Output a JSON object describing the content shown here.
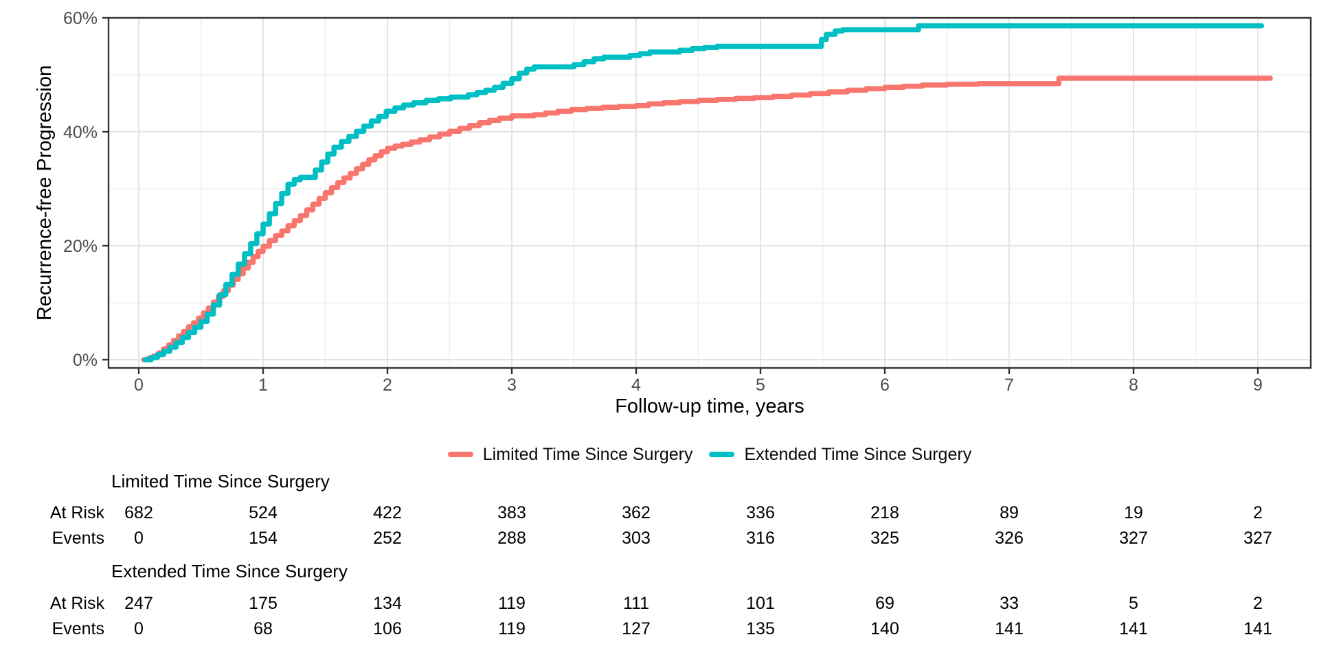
{
  "chart_data": {
    "type": "line",
    "subtype": "kaplan-meier-cumulative-incidence-step",
    "title": "",
    "xlabel": "Follow-up time, years",
    "ylabel": "Recurrence-free Progression",
    "x_ticks": [
      0,
      1,
      2,
      3,
      4,
      5,
      6,
      7,
      8,
      9
    ],
    "y_ticks": [
      {
        "value": 0,
        "label": "0%"
      },
      {
        "value": 20,
        "label": "20%"
      },
      {
        "value": 40,
        "label": "40%"
      },
      {
        "value": 60,
        "label": "60%"
      }
    ],
    "y_minor_gridlines": [
      10,
      30,
      50
    ],
    "x_minor_gridlines": [
      0.5,
      1.5,
      2.5,
      3.5,
      4.5,
      5.5,
      6.5,
      7.5,
      8.5
    ],
    "xlim": [
      -0.25,
      9.42
    ],
    "ylim": [
      -1.5,
      60
    ],
    "grid": "major-and-minor",
    "legend_position": "bottom",
    "series": [
      {
        "name": "Limited Time Since Surgery",
        "color": "#F8766D",
        "step": true,
        "points": [
          [
            0.04,
            0
          ],
          [
            0.08,
            0.3
          ],
          [
            0.12,
            0.7
          ],
          [
            0.16,
            1.2
          ],
          [
            0.2,
            1.9
          ],
          [
            0.24,
            2.6
          ],
          [
            0.28,
            3.4
          ],
          [
            0.32,
            4.2
          ],
          [
            0.36,
            5.0
          ],
          [
            0.4,
            5.8
          ],
          [
            0.44,
            6.5
          ],
          [
            0.48,
            7.3
          ],
          [
            0.52,
            8.2
          ],
          [
            0.56,
            9.1
          ],
          [
            0.6,
            10.1
          ],
          [
            0.64,
            11.1
          ],
          [
            0.68,
            12.1
          ],
          [
            0.72,
            13.1
          ],
          [
            0.76,
            14.1
          ],
          [
            0.8,
            15.1
          ],
          [
            0.84,
            16.1
          ],
          [
            0.88,
            17.1
          ],
          [
            0.92,
            18.1
          ],
          [
            0.96,
            19.0
          ],
          [
            1.0,
            19.9
          ],
          [
            1.05,
            20.9
          ],
          [
            1.1,
            21.8
          ],
          [
            1.15,
            22.6
          ],
          [
            1.2,
            23.5
          ],
          [
            1.25,
            24.4
          ],
          [
            1.3,
            25.3
          ],
          [
            1.35,
            26.3
          ],
          [
            1.4,
            27.3
          ],
          [
            1.45,
            28.3
          ],
          [
            1.5,
            29.3
          ],
          [
            1.55,
            30.2
          ],
          [
            1.6,
            31.1
          ],
          [
            1.65,
            31.9
          ],
          [
            1.7,
            32.7
          ],
          [
            1.75,
            33.5
          ],
          [
            1.8,
            34.3
          ],
          [
            1.85,
            35.1
          ],
          [
            1.9,
            35.8
          ],
          [
            1.95,
            36.5
          ],
          [
            2.0,
            37.1
          ],
          [
            2.06,
            37.5
          ],
          [
            2.12,
            37.8
          ],
          [
            2.19,
            38.2
          ],
          [
            2.26,
            38.6
          ],
          [
            2.34,
            39.1
          ],
          [
            2.42,
            39.6
          ],
          [
            2.5,
            40.1
          ],
          [
            2.58,
            40.6
          ],
          [
            2.66,
            41.1
          ],
          [
            2.74,
            41.6
          ],
          [
            2.82,
            42.0
          ],
          [
            2.9,
            42.4
          ],
          [
            3.0,
            42.8
          ],
          [
            3.18,
            43.0
          ],
          [
            3.27,
            43.3
          ],
          [
            3.37,
            43.6
          ],
          [
            3.48,
            43.9
          ],
          [
            3.6,
            44.1
          ],
          [
            3.73,
            44.3
          ],
          [
            3.86,
            44.45
          ],
          [
            4.0,
            44.6
          ],
          [
            4.1,
            44.9
          ],
          [
            4.22,
            45.1
          ],
          [
            4.35,
            45.3
          ],
          [
            4.5,
            45.5
          ],
          [
            4.65,
            45.7
          ],
          [
            4.8,
            45.85
          ],
          [
            4.95,
            46.0
          ],
          [
            5.1,
            46.2
          ],
          [
            5.25,
            46.45
          ],
          [
            5.4,
            46.7
          ],
          [
            5.55,
            47.0
          ],
          [
            5.7,
            47.3
          ],
          [
            5.85,
            47.55
          ],
          [
            6.0,
            47.8
          ],
          [
            6.15,
            48.0
          ],
          [
            6.3,
            48.2
          ],
          [
            6.5,
            48.35
          ],
          [
            6.75,
            48.45
          ],
          [
            7.4,
            49.4
          ],
          [
            9.1,
            49.4
          ]
        ]
      },
      {
        "name": "Extended Time Since Surgery",
        "color": "#00BFC4",
        "step": true,
        "points": [
          [
            0.05,
            0
          ],
          [
            0.1,
            0.4
          ],
          [
            0.15,
            0.9
          ],
          [
            0.2,
            1.5
          ],
          [
            0.25,
            2.2
          ],
          [
            0.3,
            3.0
          ],
          [
            0.35,
            3.9
          ],
          [
            0.4,
            4.8
          ],
          [
            0.45,
            5.7
          ],
          [
            0.5,
            6.7
          ],
          [
            0.55,
            8.0
          ],
          [
            0.6,
            9.6
          ],
          [
            0.65,
            11.4
          ],
          [
            0.7,
            13.2
          ],
          [
            0.75,
            15.0
          ],
          [
            0.8,
            16.8
          ],
          [
            0.85,
            18.6
          ],
          [
            0.9,
            20.4
          ],
          [
            0.95,
            22.1
          ],
          [
            1.0,
            23.8
          ],
          [
            1.05,
            25.6
          ],
          [
            1.1,
            27.4
          ],
          [
            1.15,
            29.2
          ],
          [
            1.2,
            30.8
          ],
          [
            1.25,
            31.6
          ],
          [
            1.3,
            32.0
          ],
          [
            1.42,
            33.3
          ],
          [
            1.47,
            34.7
          ],
          [
            1.52,
            36.1
          ],
          [
            1.57,
            37.3
          ],
          [
            1.63,
            38.3
          ],
          [
            1.69,
            39.2
          ],
          [
            1.75,
            40.1
          ],
          [
            1.81,
            41.0
          ],
          [
            1.87,
            41.9
          ],
          [
            1.93,
            42.7
          ],
          [
            1.99,
            43.6
          ],
          [
            2.06,
            44.2
          ],
          [
            2.13,
            44.7
          ],
          [
            2.21,
            45.1
          ],
          [
            2.31,
            45.5
          ],
          [
            2.41,
            45.8
          ],
          [
            2.51,
            46.1
          ],
          [
            2.65,
            46.5
          ],
          [
            2.72,
            46.9
          ],
          [
            2.79,
            47.3
          ],
          [
            2.86,
            47.8
          ],
          [
            2.93,
            48.5
          ],
          [
            3.0,
            49.3
          ],
          [
            3.06,
            50.3
          ],
          [
            3.12,
            51.0
          ],
          [
            3.18,
            51.4
          ],
          [
            3.5,
            51.8
          ],
          [
            3.58,
            52.3
          ],
          [
            3.66,
            52.8
          ],
          [
            3.74,
            53.1
          ],
          [
            3.95,
            53.4
          ],
          [
            4.03,
            53.7
          ],
          [
            4.11,
            54.0
          ],
          [
            4.35,
            54.3
          ],
          [
            4.45,
            54.6
          ],
          [
            4.55,
            54.8
          ],
          [
            4.65,
            55.0
          ],
          [
            5.49,
            56.2
          ],
          [
            5.53,
            57.1
          ],
          [
            5.6,
            57.7
          ],
          [
            5.66,
            57.9
          ],
          [
            6.27,
            58.6
          ],
          [
            9.03,
            58.6
          ]
        ]
      }
    ]
  },
  "legend": {
    "items": [
      {
        "label": "Limited Time Since Surgery",
        "color": "#F8766D"
      },
      {
        "label": "Extended Time Since Surgery",
        "color": "#00BFC4"
      }
    ]
  },
  "risk_table": {
    "time_points": [
      0,
      1,
      2,
      3,
      4,
      5,
      6,
      7,
      8,
      9
    ],
    "at_risk_label": "At Risk",
    "events_label": "Events",
    "groups": [
      {
        "name": "Limited Time Since Surgery",
        "at_risk": [
          "682",
          "524",
          "422",
          "383",
          "362",
          "336",
          "218",
          "89",
          "19",
          "2"
        ],
        "events": [
          "0",
          "154",
          "252",
          "288",
          "303",
          "316",
          "325",
          "326",
          "327",
          "327"
        ]
      },
      {
        "name": "Extended Time Since Surgery",
        "at_risk": [
          "247",
          "175",
          "134",
          "119",
          "111",
          "101",
          "69",
          "33",
          "5",
          "2"
        ],
        "events": [
          "0",
          "68",
          "106",
          "119",
          "127",
          "135",
          "140",
          "141",
          "141",
          "141"
        ]
      }
    ]
  },
  "colors": {
    "limited": "#F8766D",
    "extended": "#00BFC4",
    "panel_border": "#333333",
    "major_grid": "#e3e3e3",
    "minor_grid": "#f0f0f0",
    "tick_label": "#4d4d4d",
    "tick_mark": "#333333",
    "background": "#ffffff"
  }
}
